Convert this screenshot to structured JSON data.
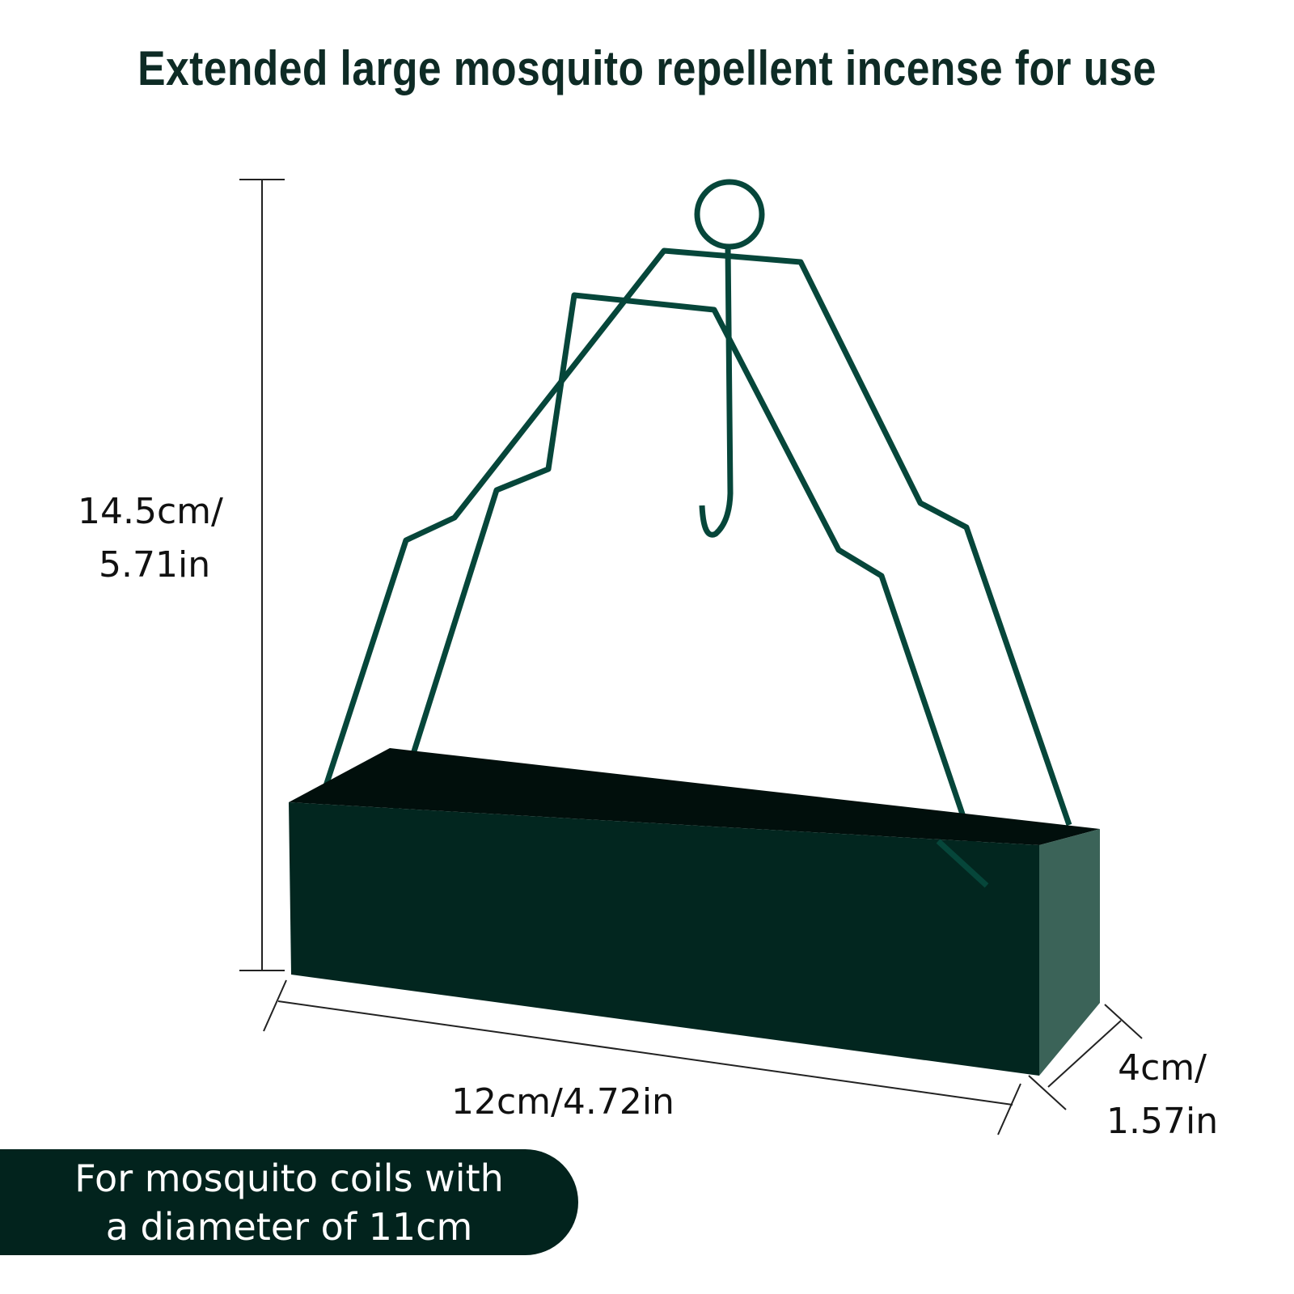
{
  "title": "Extended large mosquito repellent incense for use",
  "dimensions": {
    "height_line1": "14.5cm/",
    "height_line2": "5.71in",
    "width": "12cm/4.72in",
    "depth_line1": "4cm/",
    "depth_line2": "1.57in"
  },
  "banner": {
    "line1": "For mosquito coils with",
    "line2": "a diameter of 11cm"
  },
  "colors": {
    "product": "#03332b",
    "banner": "#02231d",
    "title": "#0e2b25"
  }
}
